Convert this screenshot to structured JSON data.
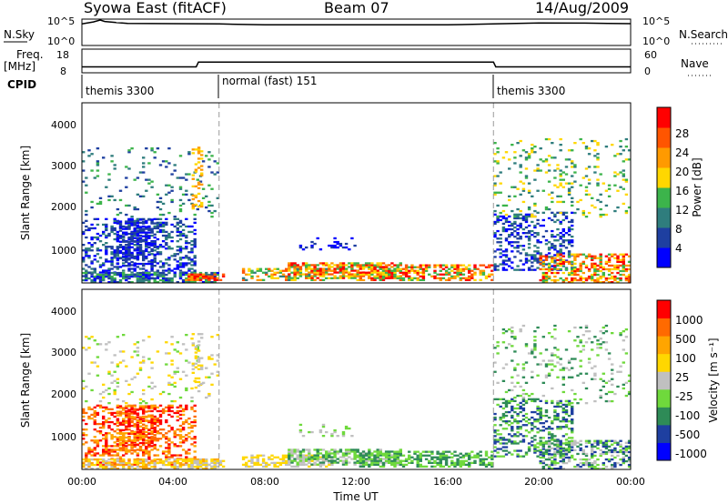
{
  "header": {
    "station": "Syowa East (fitACF)",
    "beam": "Beam 07",
    "date": "14/Aug/2009"
  },
  "sky_panel": {
    "left_label": "N.Sky",
    "right_label": "N.Search",
    "left_ticks": [
      "10^5",
      "10^0"
    ],
    "right_ticks": [
      "10^5",
      "10^0"
    ]
  },
  "freq_panel": {
    "left_label_line1": "Freq.",
    "left_label_line2": "[MHz]",
    "left_ticks": [
      "18",
      "8"
    ],
    "right_label": "Nave",
    "right_ticks": [
      "60",
      "0"
    ]
  },
  "cpid": {
    "label": "CPID",
    "segments": [
      {
        "name": "themis 3300",
        "start_h": 0,
        "end_h": 6
      },
      {
        "name": "normal (fast) 151",
        "start_h": 6,
        "end_h": 18
      },
      {
        "name": "themis 3300",
        "start_h": 18,
        "end_h": 24
      }
    ]
  },
  "colors": {
    "power_scale": [
      "#0000ff",
      "#1e3fa0",
      "#2f7d7d",
      "#3cb44b",
      "#ffd700",
      "#ff9a00",
      "#ff5500",
      "#ff0000"
    ],
    "velocity_scale": [
      "#ff0000",
      "#ff6a00",
      "#ffa500",
      "#ffd700",
      "#c0c0c0",
      "#6fd93c",
      "#2e8b57",
      "#1e3fa0",
      "#0000ff"
    ]
  },
  "chart_data": [
    {
      "type": "line",
      "panel": "N.Sky / N.Search",
      "xlabel": "",
      "x_range": [
        0,
        24
      ],
      "series": [
        {
          "x": [
            0,
            0.5,
            0.8,
            1,
            1.5,
            2,
            4,
            6,
            8,
            10,
            12,
            14,
            16,
            18,
            19,
            20,
            22,
            23,
            24
          ],
          "values": [
            30000,
            80000,
            200000,
            100000,
            60000,
            40000,
            35000,
            30000,
            20000,
            20000,
            20000,
            20000,
            20000,
            30000,
            40000,
            50000,
            45000,
            40000,
            35000
          ]
        }
      ]
    },
    {
      "type": "line",
      "panel": "Freq / Nave",
      "xlabel": "",
      "x_range": [
        0,
        24
      ],
      "freq_range": [
        8,
        18
      ],
      "series": [
        {
          "x": [
            0,
            5,
            5.1,
            18,
            18.1,
            24
          ],
          "values": [
            10.5,
            10.5,
            12.5,
            12.5,
            10.5,
            10.5
          ]
        }
      ]
    },
    {
      "type": "heatmap",
      "panel": "power",
      "xlabel": "",
      "ylabel": "Slant Range [km]",
      "x_range": [
        0,
        24
      ],
      "y_range": [
        200,
        4600
      ],
      "yticks": [
        "1000",
        "2000",
        "3000",
        "4000"
      ],
      "colorbar": {
        "label": "Power [dB]",
        "range": [
          0,
          30
        ],
        "ticks": [
          "4",
          "8",
          "12",
          "16",
          "20",
          "24",
          "28"
        ]
      }
    },
    {
      "type": "heatmap",
      "panel": "velocity",
      "xlabel": "Time UT",
      "ylabel": "Slant Range [km]",
      "x_range": [
        0,
        24
      ],
      "y_range": [
        200,
        4600
      ],
      "xticks": [
        "00:00",
        "04:00",
        "08:00",
        "12:00",
        "16:00",
        "20:00",
        "00:00"
      ],
      "yticks": [
        "1000",
        "2000",
        "3000",
        "4000"
      ],
      "colorbar": {
        "label": "Velocity [m s⁻¹]",
        "ticks": [
          "1000",
          "500",
          "100",
          "25",
          "-25",
          "-100",
          "-500",
          "-1000"
        ]
      }
    }
  ]
}
